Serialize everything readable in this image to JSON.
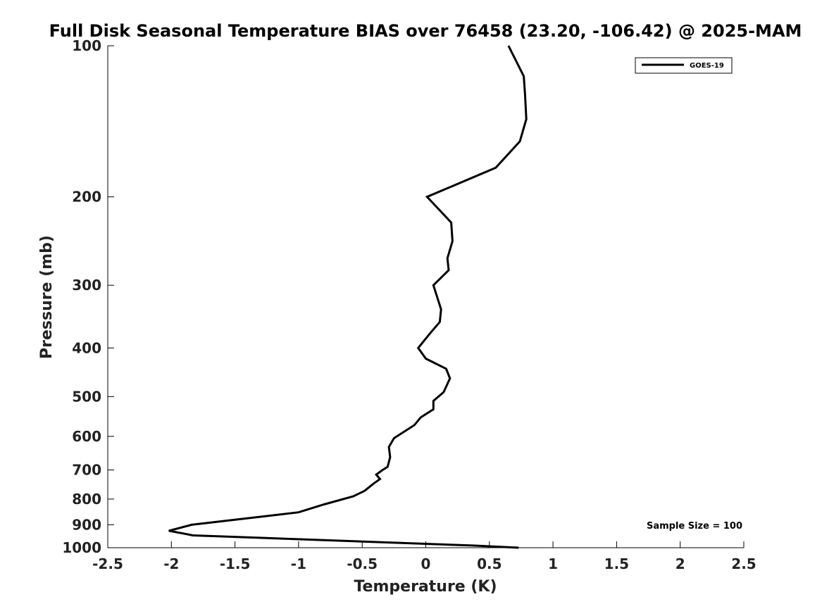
{
  "chart_data": {
    "type": "line",
    "title": "Full Disk Seasonal Temperature BIAS over 76458 (23.20, -106.42) @ 2025-MAM",
    "xlabel": "Temperature (K)",
    "ylabel": "Pressure (mb)",
    "xlim": [
      -2.5,
      2.5
    ],
    "ylim": [
      1000,
      100
    ],
    "y_scale": "log",
    "y_inverted": true,
    "x_ticks": [
      -2.5,
      -2,
      -1.5,
      -1,
      -0.5,
      0,
      0.5,
      1,
      1.5,
      2,
      2.5
    ],
    "x_tick_labels": [
      "-2.5",
      "-2",
      "-1.5",
      "-1",
      "-0.5",
      "0",
      "0.5",
      "1",
      "1.5",
      "2",
      "2.5"
    ],
    "y_ticks": [
      100,
      200,
      300,
      400,
      500,
      600,
      700,
      800,
      900,
      1000
    ],
    "y_tick_labels": [
      "100",
      "200",
      "300",
      "400",
      "500",
      "600",
      "700",
      "800",
      "900",
      "1000"
    ],
    "grid": false,
    "legend_position": "top-right",
    "annotation": "Sample Size = 100",
    "series": [
      {
        "name": "GOES-19",
        "color": "#000000",
        "x": [
          0.65,
          0.77,
          0.78,
          0.79,
          0.74,
          0.55,
          0.01,
          0.2,
          0.21,
          0.17,
          0.18,
          0.06,
          0.12,
          0.11,
          0.03,
          -0.06,
          0.0,
          0.16,
          0.19,
          0.14,
          0.06,
          0.06,
          -0.04,
          -0.09,
          -0.25,
          -0.29,
          -0.28,
          -0.3,
          -0.34,
          -0.39,
          -0.36,
          -0.41,
          -0.48,
          -0.57,
          -0.8,
          -1.0,
          -1.84,
          -2.02,
          -1.83,
          0.37,
          0.73
        ],
        "y": [
          100,
          115,
          125,
          140,
          155,
          175,
          200,
          225,
          245,
          265,
          280,
          300,
          335,
          355,
          375,
          400,
          420,
          440,
          460,
          490,
          510,
          530,
          550,
          570,
          605,
          630,
          660,
          690,
          700,
          715,
          730,
          745,
          770,
          790,
          820,
          850,
          900,
          925,
          945,
          990,
          1000
        ]
      }
    ]
  }
}
